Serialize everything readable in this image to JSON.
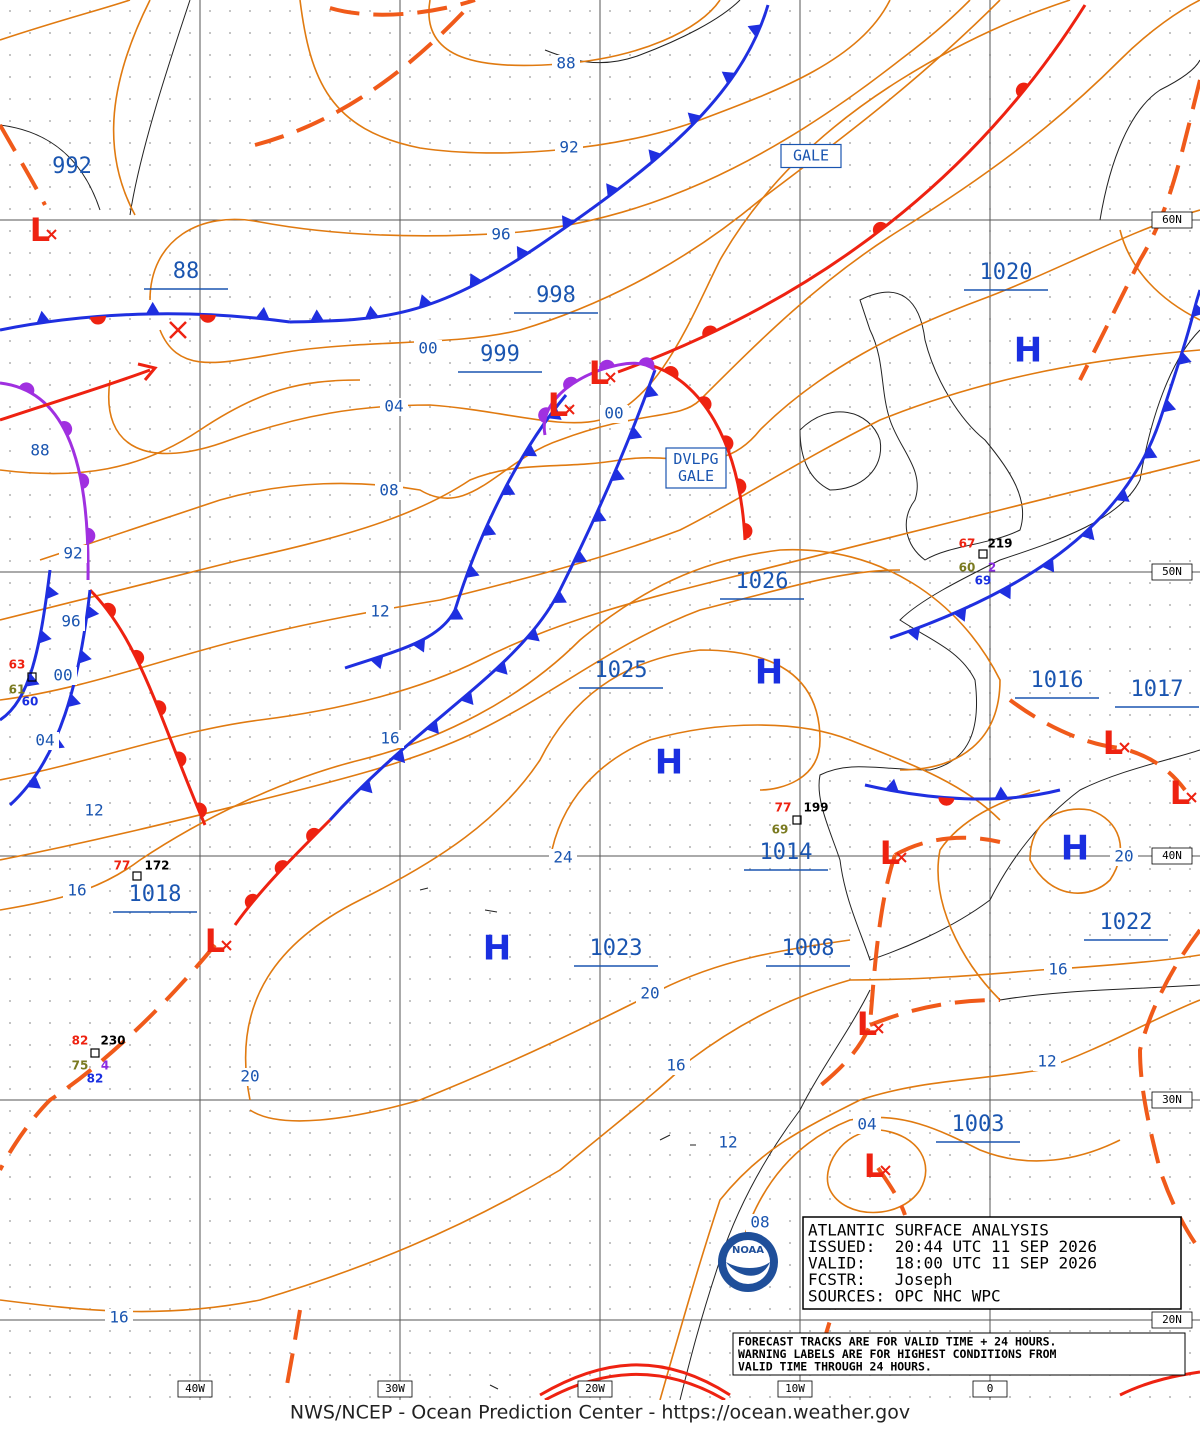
{
  "map": {
    "pressure_labels": [
      "992",
      "88",
      "998",
      "999",
      "1020",
      "1026",
      "1025",
      "1016",
      "1017",
      "1014",
      "1018",
      "1023",
      "1008",
      "1022",
      "1003"
    ],
    "isobar_labels": [
      "88",
      "92",
      "96",
      "00",
      "04",
      "00",
      "08",
      "88",
      "92",
      "96",
      "00",
      "04",
      "12",
      "12",
      "16",
      "16",
      "24",
      "20",
      "20",
      "16",
      "12",
      "08",
      "16",
      "04",
      "12",
      "16",
      "20"
    ],
    "highs": [
      "H",
      "H",
      "H",
      "H",
      "H"
    ],
    "lows": [
      "L",
      "L",
      "L",
      "L",
      "L",
      "L",
      "L",
      "L",
      "L"
    ],
    "warnings": [
      [
        "GALE"
      ],
      [
        "DVLPG",
        "GALE"
      ]
    ],
    "station_obs": [
      "67",
      "219",
      "60",
      "2",
      "69",
      "77",
      "199",
      "69",
      "77",
      "172",
      "82",
      "230",
      "75",
      "4",
      "82",
      "63",
      "61",
      "60"
    ],
    "lat_labels": [
      "60N",
      "50N",
      "40N",
      "30N",
      "20N"
    ],
    "lon_labels": [
      "40W",
      "30W",
      "20W",
      "10W",
      "0"
    ]
  },
  "info_box": {
    "lines": [
      "ATLANTIC SURFACE ANALYSIS",
      "ISSUED:  20:44 UTC 11 SEP 2026",
      "VALID:   18:00 UTC 11 SEP 2026",
      "FCSTR:   Joseph",
      "SOURCES: OPC NHC WPC"
    ]
  },
  "note": {
    "lines": [
      "FORECAST TRACKS ARE FOR VALID TIME + 24 HOURS.",
      "WARNING LABELS ARE FOR HIGHEST CONDITIONS FROM",
      "VALID TIME THROUGH 24 HOURS."
    ]
  },
  "logo": "NOAA",
  "footer": "NWS/NCEP - Ocean Prediction Center - https://ocean.weather.gov"
}
